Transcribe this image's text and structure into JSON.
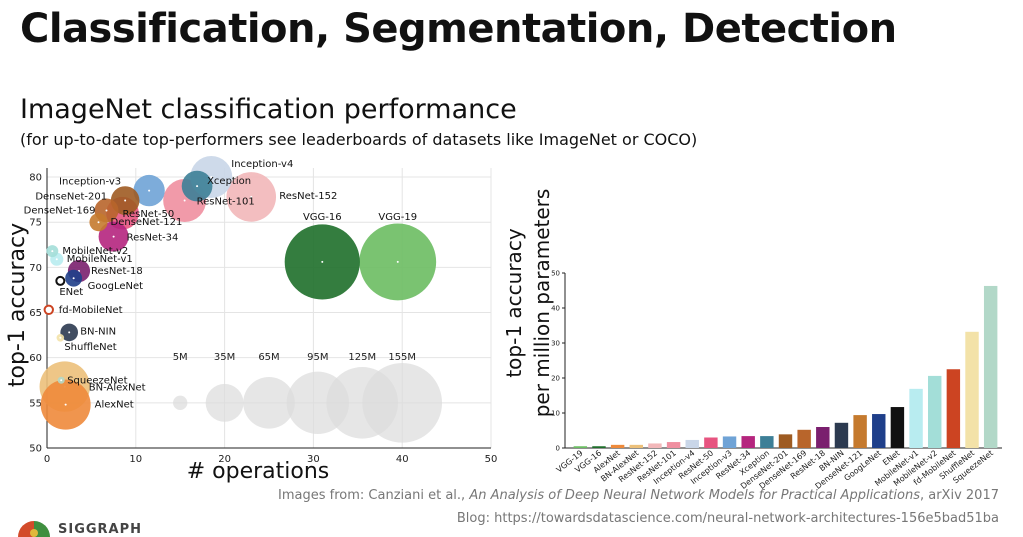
{
  "slide": {
    "title": "Classification, Segmentation, Detection",
    "subtitle": "ImageNet classification performance",
    "subtitle_note": "(for up-to-date top-performers see leaderboards of datasets like ImageNet or COCO)",
    "credit_prefix": "Images from: Canziani et al., ",
    "credit_paper": "An Analysis of Deep Neural Network Models for Practical Applications",
    "credit_suffix": ", arXiv 2017",
    "blog": "Blog: https://towardsdatascience.com/neural-network-architectures-156e5bad51ba",
    "logo_text": "SIGGRAPH"
  },
  "chart_data": [
    {
      "type": "scatter",
      "title": "",
      "xlabel": "# operations",
      "ylabel": "top-1 accuracy",
      "xlim": [
        0,
        50
      ],
      "ylim": [
        50,
        81
      ],
      "xticks": [
        0,
        10,
        20,
        30,
        40,
        50
      ],
      "yticks": [
        50,
        55,
        60,
        65,
        70,
        75,
        80
      ],
      "grid": true,
      "size_legend": [
        {
          "label": "5M",
          "x": 15,
          "y": 55,
          "size": 5
        },
        {
          "label": "35M",
          "x": 20,
          "y": 55,
          "size": 35
        },
        {
          "label": "65M",
          "x": 25,
          "y": 55,
          "size": 65
        },
        {
          "label": "95M",
          "x": 30.5,
          "y": 55,
          "size": 95
        },
        {
          "label": "125M",
          "x": 35.5,
          "y": 55,
          "size": 125
        },
        {
          "label": "155M",
          "x": 40,
          "y": 55,
          "size": 155
        }
      ],
      "points": [
        {
          "name": "Inception-v4",
          "x": 18.5,
          "y": 80.0,
          "size": 43,
          "color": "#c9d6e8"
        },
        {
          "name": "ResNet-152",
          "x": 23.0,
          "y": 77.8,
          "size": 60,
          "color": "#f2b7b9"
        },
        {
          "name": "ResNet-101",
          "x": 15.5,
          "y": 77.4,
          "size": 45,
          "color": "#ef8fa0"
        },
        {
          "name": "Xception",
          "x": 16.9,
          "y": 79.0,
          "size": 23,
          "color": "#3d7f97"
        },
        {
          "name": "Inception-v3",
          "x": 11.5,
          "y": 78.5,
          "size": 24,
          "color": "#6fa3d6"
        },
        {
          "name": "ResNet-50",
          "x": 8.5,
          "y": 76.0,
          "size": 26,
          "color": "#e75480"
        },
        {
          "name": "DenseNet-201",
          "x": 8.8,
          "y": 77.4,
          "size": 20,
          "color": "#9e5b22"
        },
        {
          "name": "DenseNet-169",
          "x": 6.7,
          "y": 76.3,
          "size": 14,
          "color": "#b8652b"
        },
        {
          "name": "DenseNet-121",
          "x": 5.8,
          "y": 75.0,
          "size": 8,
          "color": "#c57a2e"
        },
        {
          "name": "ResNet-34",
          "x": 7.5,
          "y": 73.4,
          "size": 22,
          "color": "#b5257e"
        },
        {
          "name": "VGG-16",
          "x": 31.0,
          "y": 70.6,
          "size": 138,
          "color": "#1e6f2a"
        },
        {
          "name": "VGG-19",
          "x": 39.5,
          "y": 70.6,
          "size": 144,
          "color": "#6bbd62"
        },
        {
          "name": "MobileNet-v2",
          "x": 0.6,
          "y": 71.8,
          "size": 3.5,
          "color": "#a3ded8"
        },
        {
          "name": "MobileNet-v1",
          "x": 1.1,
          "y": 70.9,
          "size": 4.2,
          "color": "#b8ecf0"
        },
        {
          "name": "ResNet-18",
          "x": 3.6,
          "y": 69.6,
          "size": 12,
          "color": "#7a1f6e"
        },
        {
          "name": "GoogLeNet",
          "x": 3.0,
          "y": 68.8,
          "size": 7,
          "color": "#1f3f8a"
        },
        {
          "name": "ENet",
          "x": 1.5,
          "y": 68.5,
          "size": 0.4,
          "color": "#111111"
        },
        {
          "name": "fd-MobileNet",
          "x": 0.2,
          "y": 65.3,
          "size": 1.0,
          "color": "#cc4422"
        },
        {
          "name": "BN-NIN",
          "x": 2.5,
          "y": 62.8,
          "size": 7.6,
          "color": "#2c3a50"
        },
        {
          "name": "ShuffleNet",
          "x": 1.5,
          "y": 62.2,
          "size": 1.4,
          "color": "#f3e2a8"
        },
        {
          "name": "SqueezeNet",
          "x": 1.6,
          "y": 57.5,
          "size": 1.2,
          "color": "#b2d8c8"
        },
        {
          "name": "BN-AlexNet",
          "x": 2.0,
          "y": 56.8,
          "size": 62,
          "color": "#ecc07a"
        },
        {
          "name": "AlexNet",
          "x": 2.1,
          "y": 54.8,
          "size": 61,
          "color": "#ee8a3b"
        }
      ]
    },
    {
      "type": "bar",
      "title": "",
      "xlabel": "",
      "ylabel": "top-1 accuracy\nper million parameters",
      "ylim": [
        0,
        50
      ],
      "yticks": [
        0,
        10,
        20,
        30,
        40,
        50
      ],
      "categories": [
        "VGG-19",
        "VGG-16",
        "AlexNet",
        "BN-AlexNet",
        "ResNet-152",
        "ResNet-101",
        "Inception-v4",
        "ResNet-50",
        "Inception-v3",
        "ResNet-34",
        "Xception",
        "DenseNet-201",
        "DenseNet-169",
        "ResNet-18",
        "BN-NIN",
        "DenseNet-121",
        "GoogLeNet",
        "ENet",
        "MobileNet-v1",
        "MobileNet-v2",
        "fd-MobileNet",
        "ShuffleNet",
        "SqueezeNet"
      ],
      "values": [
        0.5,
        0.5,
        0.9,
        0.9,
        1.3,
        1.7,
        2.3,
        3.0,
        3.3,
        3.4,
        3.4,
        3.9,
        5.2,
        6.0,
        7.2,
        9.4,
        9.7,
        11.7,
        16.9,
        20.6,
        22.5,
        33.2,
        46.3
      ],
      "colors": [
        "#6bbd62",
        "#1e6f2a",
        "#ee8a3b",
        "#ecc07a",
        "#f2b7b9",
        "#ef8fa0",
        "#c9d6e8",
        "#e75480",
        "#6fa3d6",
        "#b5257e",
        "#3d7f97",
        "#9e5b22",
        "#b8652b",
        "#7a1f6e",
        "#2c3a50",
        "#c57a2e",
        "#1f3f8a",
        "#111111",
        "#b8ecf0",
        "#a3ded8",
        "#cc4422",
        "#f3e2a8",
        "#b2d8c8"
      ]
    }
  ]
}
